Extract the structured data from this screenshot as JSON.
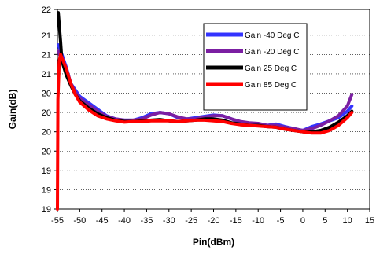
{
  "chart_data": {
    "type": "line",
    "xlabel": "Pin(dBm)",
    "ylabel": "Gain(dB)",
    "xlim": [
      -55,
      15
    ],
    "ylim": [
      18.9,
      22
    ],
    "x_ticks": [
      -55,
      -50,
      -45,
      -40,
      -35,
      -30,
      -25,
      -20,
      -15,
      -10,
      -5,
      0,
      5,
      10,
      15
    ],
    "y_tick_values": [
      18.9,
      19.2,
      19.5,
      19.8,
      20.1,
      20.4,
      20.7,
      21.0,
      21.3,
      21.6,
      22.0
    ],
    "y_tick_labels": [
      "19",
      "19",
      "19",
      "20",
      "20",
      "20",
      "20",
      "21",
      "21",
      "21",
      "22"
    ],
    "grid": "horizontal dotted",
    "legend_position": "top-right",
    "series": [
      {
        "name": "Gain -40 Deg C",
        "color": "#3333ff",
        "points": [
          [
            -54.8,
            21.45
          ],
          [
            -54,
            21.3
          ],
          [
            -53,
            21.1
          ],
          [
            -52,
            20.85
          ],
          [
            -51,
            20.75
          ],
          [
            -50,
            20.65
          ],
          [
            -48,
            20.55
          ],
          [
            -46,
            20.45
          ],
          [
            -44,
            20.35
          ],
          [
            -42,
            20.3
          ],
          [
            -40,
            20.28
          ],
          [
            -38,
            20.28
          ],
          [
            -36,
            20.32
          ],
          [
            -34,
            20.38
          ],
          [
            -32,
            20.4
          ],
          [
            -30,
            20.38
          ],
          [
            -28,
            20.32
          ],
          [
            -26,
            20.3
          ],
          [
            -24,
            20.32
          ],
          [
            -22,
            20.34
          ],
          [
            -20,
            20.36
          ],
          [
            -18,
            20.35
          ],
          [
            -16,
            20.3
          ],
          [
            -14,
            20.25
          ],
          [
            -12,
            20.22
          ],
          [
            -10,
            20.22
          ],
          [
            -8,
            20.2
          ],
          [
            -6,
            20.22
          ],
          [
            -4,
            20.18
          ],
          [
            -2,
            20.15
          ],
          [
            0,
            20.12
          ],
          [
            2,
            20.18
          ],
          [
            4,
            20.22
          ],
          [
            6,
            20.27
          ],
          [
            8,
            20.32
          ],
          [
            10,
            20.42
          ],
          [
            11,
            20.5
          ]
        ]
      },
      {
        "name": "Gain -20 Deg C",
        "color": "#7b1fa2",
        "points": [
          [
            -54.8,
            21.35
          ],
          [
            -54,
            21.2
          ],
          [
            -53,
            21.05
          ],
          [
            -52,
            20.85
          ],
          [
            -51,
            20.72
          ],
          [
            -50,
            20.62
          ],
          [
            -48,
            20.52
          ],
          [
            -46,
            20.42
          ],
          [
            -44,
            20.34
          ],
          [
            -42,
            20.3
          ],
          [
            -40,
            20.28
          ],
          [
            -38,
            20.28
          ],
          [
            -36,
            20.3
          ],
          [
            -34,
            20.36
          ],
          [
            -32,
            20.4
          ],
          [
            -30,
            20.38
          ],
          [
            -28,
            20.33
          ],
          [
            -26,
            20.3
          ],
          [
            -24,
            20.3
          ],
          [
            -22,
            20.33
          ],
          [
            -20,
            20.35
          ],
          [
            -18,
            20.35
          ],
          [
            -16,
            20.3
          ],
          [
            -14,
            20.26
          ],
          [
            -12,
            20.24
          ],
          [
            -10,
            20.23
          ],
          [
            -8,
            20.2
          ],
          [
            -6,
            20.2
          ],
          [
            -4,
            20.17
          ],
          [
            -2,
            20.15
          ],
          [
            0,
            20.12
          ],
          [
            2,
            20.15
          ],
          [
            4,
            20.2
          ],
          [
            6,
            20.27
          ],
          [
            8,
            20.35
          ],
          [
            10,
            20.5
          ],
          [
            11,
            20.68
          ]
        ]
      },
      {
        "name": "Gain 25 Deg C",
        "color": "#000000",
        "points": [
          [
            -54.8,
            21.95
          ],
          [
            -54.3,
            21.5
          ],
          [
            -54,
            21.2
          ],
          [
            -53,
            20.98
          ],
          [
            -52,
            20.82
          ],
          [
            -51,
            20.68
          ],
          [
            -50,
            20.58
          ],
          [
            -48,
            20.47
          ],
          [
            -46,
            20.38
          ],
          [
            -44,
            20.32
          ],
          [
            -42,
            20.28
          ],
          [
            -40,
            20.26
          ],
          [
            -38,
            20.26
          ],
          [
            -36,
            20.27
          ],
          [
            -34,
            20.28
          ],
          [
            -32,
            20.29
          ],
          [
            -30,
            20.27
          ],
          [
            -28,
            20.26
          ],
          [
            -26,
            20.27
          ],
          [
            -24,
            20.28
          ],
          [
            -22,
            20.3
          ],
          [
            -20,
            20.3
          ],
          [
            -18,
            20.28
          ],
          [
            -16,
            20.24
          ],
          [
            -14,
            20.22
          ],
          [
            -12,
            20.2
          ],
          [
            -10,
            20.2
          ],
          [
            -8,
            20.18
          ],
          [
            -6,
            20.17
          ],
          [
            -4,
            20.14
          ],
          [
            -2,
            20.12
          ],
          [
            0,
            20.1
          ],
          [
            2,
            20.1
          ],
          [
            4,
            20.12
          ],
          [
            6,
            20.17
          ],
          [
            8,
            20.25
          ],
          [
            10,
            20.35
          ],
          [
            11,
            20.42
          ]
        ]
      },
      {
        "name": "Gain 85 Deg C",
        "color": "#ff0000",
        "points": [
          [
            -55,
            18.9
          ],
          [
            -54.9,
            20.6
          ],
          [
            -54.6,
            21.2
          ],
          [
            -54.3,
            21.3
          ],
          [
            -54,
            21.25
          ],
          [
            -53,
            21.08
          ],
          [
            -52,
            20.85
          ],
          [
            -51,
            20.68
          ],
          [
            -50,
            20.56
          ],
          [
            -48,
            20.44
          ],
          [
            -46,
            20.35
          ],
          [
            -44,
            20.3
          ],
          [
            -42,
            20.27
          ],
          [
            -40,
            20.25
          ],
          [
            -38,
            20.26
          ],
          [
            -36,
            20.26
          ],
          [
            -34,
            20.27
          ],
          [
            -32,
            20.27
          ],
          [
            -30,
            20.27
          ],
          [
            -28,
            20.26
          ],
          [
            -26,
            20.27
          ],
          [
            -24,
            20.28
          ],
          [
            -22,
            20.28
          ],
          [
            -20,
            20.27
          ],
          [
            -18,
            20.26
          ],
          [
            -16,
            20.23
          ],
          [
            -14,
            20.21
          ],
          [
            -12,
            20.2
          ],
          [
            -10,
            20.19
          ],
          [
            -8,
            20.18
          ],
          [
            -6,
            20.17
          ],
          [
            -4,
            20.14
          ],
          [
            -2,
            20.12
          ],
          [
            0,
            20.1
          ],
          [
            2,
            20.08
          ],
          [
            4,
            20.08
          ],
          [
            6,
            20.12
          ],
          [
            8,
            20.2
          ],
          [
            10,
            20.32
          ],
          [
            11,
            20.4
          ]
        ]
      }
    ]
  }
}
